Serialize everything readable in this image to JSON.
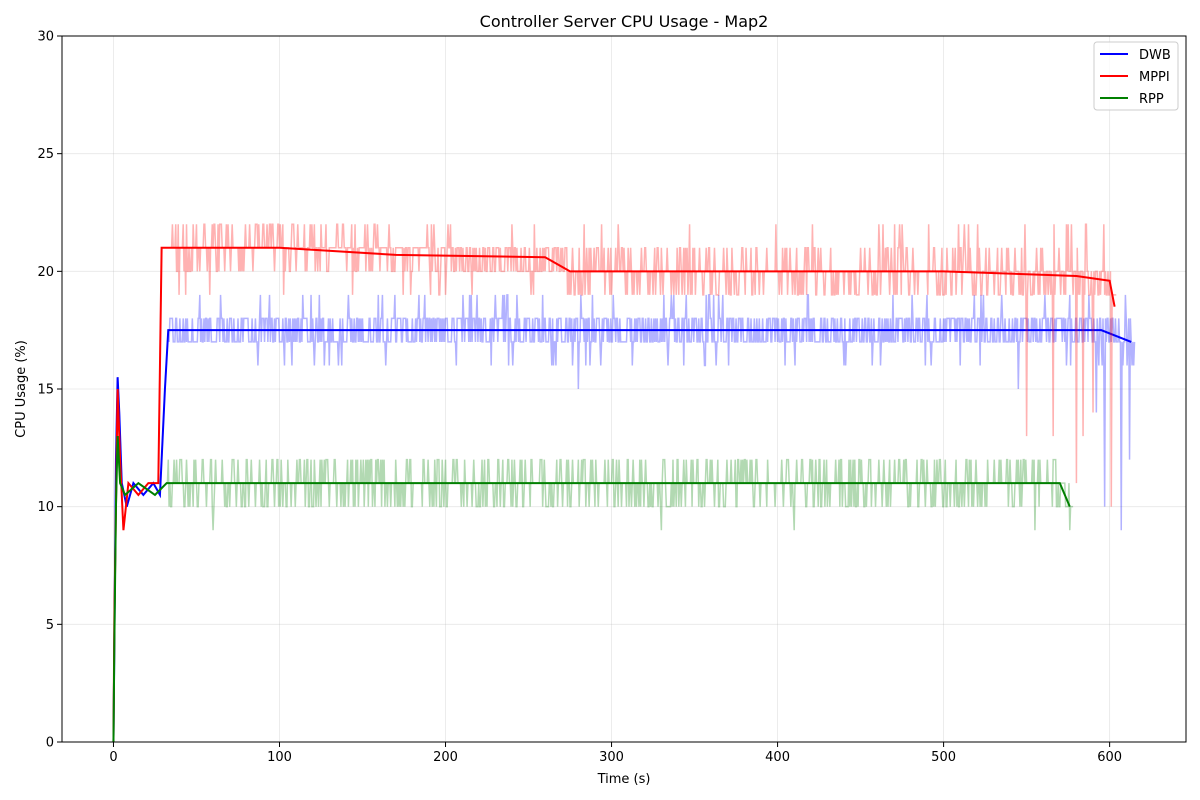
{
  "chart_data": {
    "type": "line",
    "title": "Controller Server CPU Usage - Map2",
    "xlabel": "Time (s)",
    "ylabel": "CPU Usage (%)",
    "xlim": [
      -31,
      646
    ],
    "ylim": [
      0,
      30
    ],
    "xticks": [
      0,
      100,
      200,
      300,
      400,
      500,
      600
    ],
    "yticks": [
      0,
      5,
      10,
      15,
      20,
      25,
      30
    ],
    "grid": true,
    "legend_position": "top-right",
    "series": [
      {
        "name": "DWB",
        "color": "#0000ff",
        "end_time": 615,
        "raw_alpha": 0.3,
        "ramp": [
          [
            0,
            0
          ],
          [
            0.5,
            4
          ],
          [
            1.5,
            12
          ],
          [
            2.5,
            15.5
          ],
          [
            3.5,
            14
          ],
          [
            5,
            11
          ],
          [
            8,
            10
          ],
          [
            12,
            11
          ],
          [
            18,
            10.5
          ],
          [
            24,
            11
          ],
          [
            28,
            10.5
          ],
          [
            31,
            15
          ],
          [
            33,
            17.5
          ]
        ],
        "smooth": [
          [
            33,
            17.5
          ],
          [
            100,
            17.5
          ],
          [
            200,
            17.5
          ],
          [
            300,
            17.5
          ],
          [
            400,
            17.5
          ],
          [
            500,
            17.5
          ],
          [
            570,
            17.5
          ],
          [
            595,
            17.5
          ],
          [
            613,
            17
          ]
        ],
        "raw_levels": [
          16,
          17,
          18,
          19
        ],
        "raw_spikes": [
          [
            280,
            15
          ],
          [
            545,
            15
          ],
          [
            592,
            14
          ],
          [
            597,
            10
          ],
          [
            607,
            9
          ],
          [
            612,
            12
          ]
        ]
      },
      {
        "name": "MPPI",
        "color": "#ff0000",
        "end_time": 604,
        "raw_alpha": 0.3,
        "ramp": [
          [
            0,
            0
          ],
          [
            0.5,
            5
          ],
          [
            1.5,
            10
          ],
          [
            2.5,
            15
          ],
          [
            4,
            12
          ],
          [
            6,
            9
          ],
          [
            9,
            11
          ],
          [
            15,
            10.5
          ],
          [
            21,
            11
          ],
          [
            27,
            11
          ],
          [
            29,
            21
          ],
          [
            33,
            21
          ]
        ],
        "smooth": [
          [
            33,
            21
          ],
          [
            100,
            21
          ],
          [
            170,
            20.7
          ],
          [
            260,
            20.6
          ],
          [
            275,
            20
          ],
          [
            400,
            20
          ],
          [
            500,
            20
          ],
          [
            580,
            19.8
          ],
          [
            600,
            19.6
          ],
          [
            603,
            18.5
          ]
        ],
        "raw_levels": [
          19,
          20,
          21,
          22
        ],
        "raw_spikes": [
          [
            550,
            13
          ],
          [
            566,
            13
          ],
          [
            580,
            11
          ],
          [
            584,
            13
          ],
          [
            590,
            14
          ],
          [
            601,
            10
          ]
        ]
      },
      {
        "name": "RPP",
        "color": "#008000",
        "end_time": 578,
        "raw_alpha": 0.3,
        "ramp": [
          [
            0,
            0
          ],
          [
            0.5,
            4
          ],
          [
            1.5,
            10
          ],
          [
            2.5,
            13
          ],
          [
            4,
            11
          ],
          [
            7,
            10.5
          ],
          [
            15,
            11
          ],
          [
            25,
            10.5
          ],
          [
            32,
            11
          ]
        ],
        "smooth": [
          [
            32,
            11
          ],
          [
            100,
            11
          ],
          [
            200,
            11
          ],
          [
            300,
            11
          ],
          [
            400,
            11
          ],
          [
            500,
            11
          ],
          [
            570,
            11
          ],
          [
            576,
            10
          ]
        ],
        "raw_levels": [
          10,
          11,
          12
        ],
        "raw_spikes": [
          [
            60,
            9
          ],
          [
            330,
            9
          ],
          [
            410,
            9
          ],
          [
            555,
            9
          ],
          [
            576,
            9
          ]
        ]
      }
    ]
  }
}
